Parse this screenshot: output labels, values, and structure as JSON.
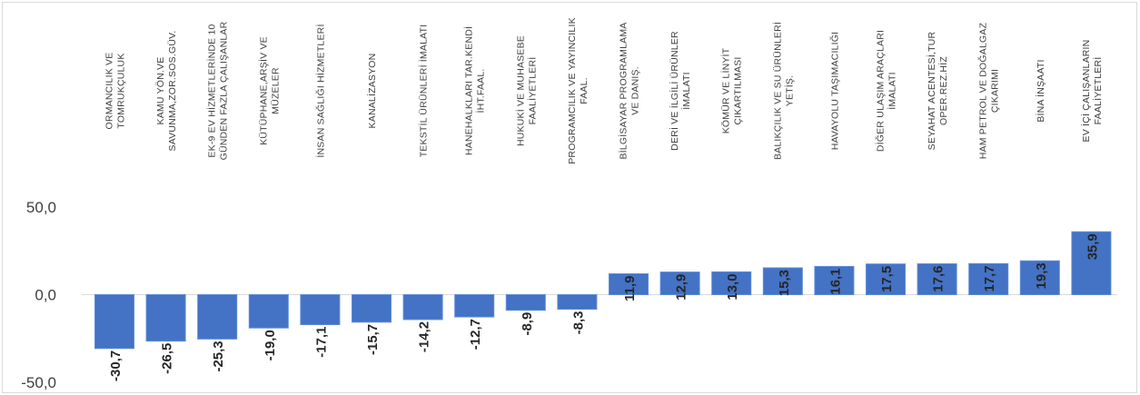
{
  "chart_data": {
    "type": "bar",
    "orientation": "vertical",
    "categories": [
      [
        "ORMANCILIK VE",
        "TOMRUKÇULUK"
      ],
      [
        "KAMU YÖN.VE",
        "SAVUNMA,ZOR.SOS.GÜV."
      ],
      [
        "EK-9 EV HİZMETLERİNDE 10",
        "GÜNDEN FAZLA ÇALIŞANLAR"
      ],
      [
        "KÜTÜPHANE,ARŞİV VE",
        "MÜZELER"
      ],
      [
        "İNSAN SAĞLIĞI HİZMETLERİ"
      ],
      [
        "KANALİZASYON"
      ],
      [
        "TEKSTİL ÜRÜNLERİ İMALATI"
      ],
      [
        "HANEHALKLARI TAR.KENDİ",
        "İHT.FAAL."
      ],
      [
        "HUKUKİ VE MUHASEBE",
        "FAALİYETLERİ"
      ],
      [
        "PROGRAMCILIK VE YAYINCILIK",
        "FAAL."
      ],
      [
        "BİLGİSAYAR PROGRAMLAMA",
        "VE DANIŞ."
      ],
      [
        "DERİ VE İLGİLİ ÜRÜNLER",
        "İMALATI"
      ],
      [
        "KÖMÜR VE LİNYİT",
        "ÇIKARTILMASI"
      ],
      [
        "BALIKÇILIK VE SU ÜRÜNLERİ",
        "YETİŞ."
      ],
      [
        "HAVAYOLU TAŞIMACILIĞI"
      ],
      [
        "DİĞER ULAŞIM ARAÇLARI",
        "İMALATI"
      ],
      [
        "SEYAHAT ACENTESİ,TUR",
        "OPER.REZ.HİZ"
      ],
      [
        "HAM PETROL VE DOĞALGAZ",
        "ÇIKARIMI"
      ],
      [
        "BİNA İNŞAATI"
      ],
      [
        "EV İÇİ ÇALIŞANLARIN",
        "FAALİYETLERİ"
      ]
    ],
    "values": [
      -30.7,
      -26.5,
      -25.3,
      -19.0,
      -17.1,
      -15.7,
      -14.2,
      -12.7,
      -8.9,
      -8.3,
      11.9,
      12.9,
      13.0,
      15.3,
      16.1,
      17.5,
      17.6,
      17.7,
      19.3,
      35.9
    ],
    "data_labels": [
      "-30,7",
      "-26,5",
      "-25,3",
      "-19,0",
      "-17,1",
      "-15,7",
      "-14,2",
      "-12,7",
      "-8,9",
      "-8,3",
      "11,9",
      "12,9",
      "13,0",
      "15,3",
      "16,1",
      "17,5",
      "17,6",
      "17,7",
      "19,3",
      "35,9"
    ],
    "ylim": [
      -50,
      50
    ],
    "yticks": [
      -50,
      0,
      50
    ],
    "ytick_labels": [
      "-50,0",
      "0,0",
      "50,0"
    ],
    "bar_color": "#4472c4",
    "bar_border_color": "#5b8bd9",
    "grid": false,
    "legend": "none",
    "title": "",
    "xlabel": "",
    "ylabel": ""
  }
}
